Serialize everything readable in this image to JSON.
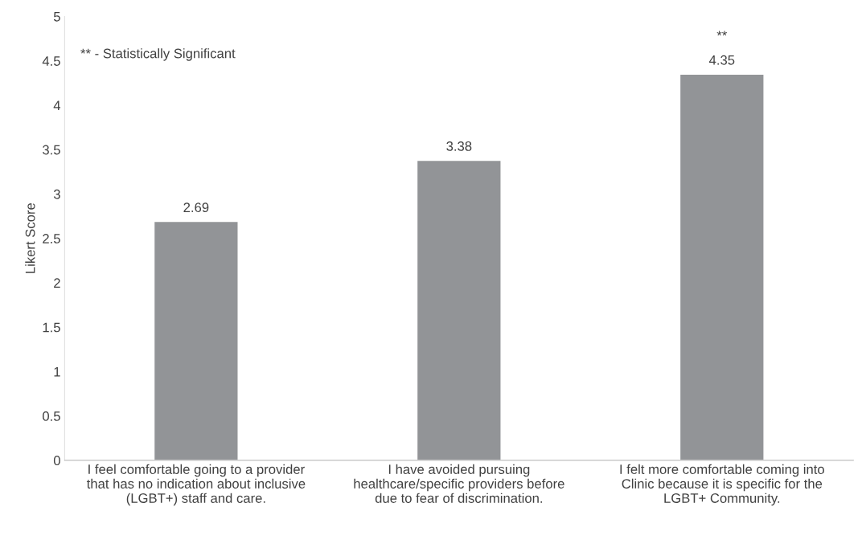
{
  "chart_data": {
    "type": "bar",
    "ylabel": "Likert Score",
    "categories": [
      "I feel comfortable going to a provider\nthat has no indication about inclusive\n(LGBT+) staff and care.",
      "I have avoided pursuing\nhealthcare/specific providers before\ndue to fear of discrimination.",
      "I felt more comfortable coming into\nClinic because it is specific for the\nLGBT+ Community."
    ],
    "values": [
      2.69,
      3.38,
      4.35
    ],
    "color": "#929497",
    "data_labels": true,
    "ylim": [
      0,
      5
    ],
    "yticks": [
      0,
      0.5,
      1,
      1.5,
      2,
      2.5,
      3,
      3.5,
      4,
      4.5,
      5
    ],
    "grid": false,
    "annotations": [
      "** - Statistically Significant",
      "**"
    ]
  }
}
